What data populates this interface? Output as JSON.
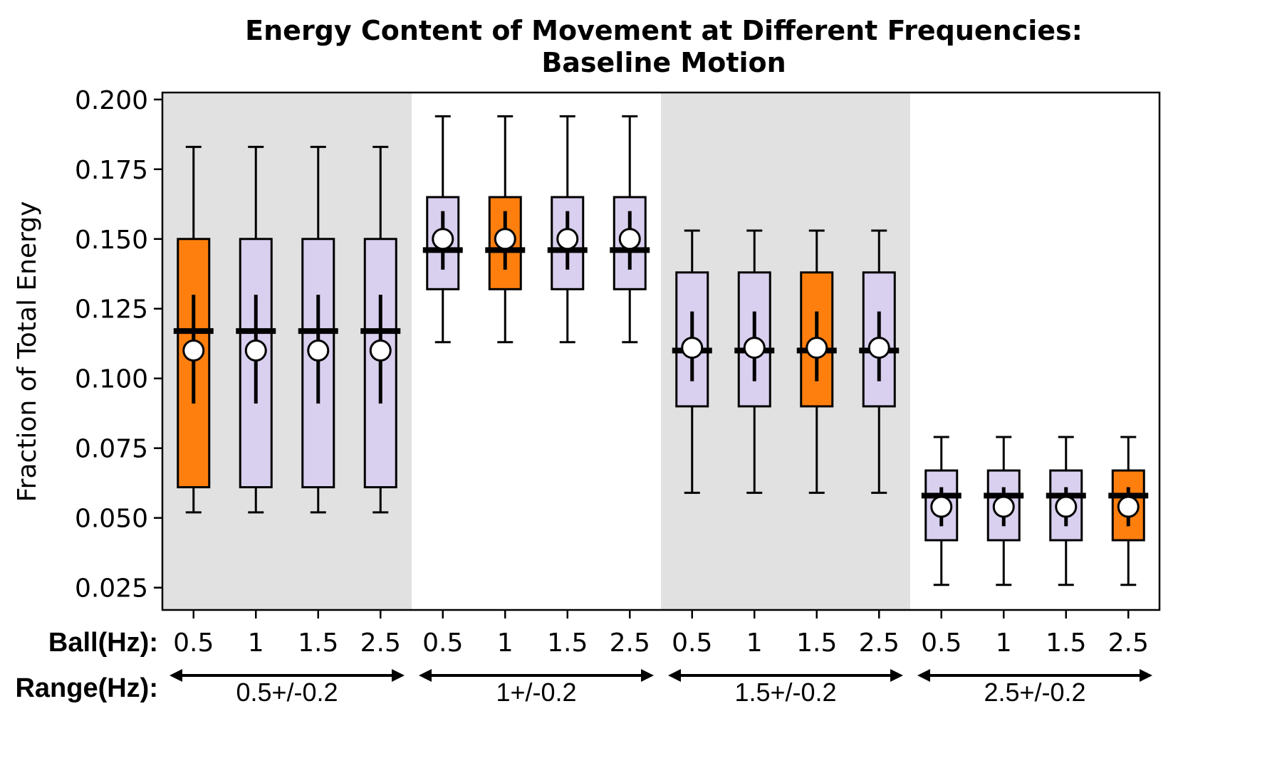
{
  "chart_data": {
    "type": "box",
    "title": "Energy Content of Movement at Different Frequencies:",
    "subtitle": "Baseline Motion",
    "ylabel": "Fraction of Total Energy",
    "ylim": [
      0.017,
      0.2025
    ],
    "yticks": [
      "0.025",
      "0.050",
      "0.075",
      "0.100",
      "0.125",
      "0.150",
      "0.175",
      "0.200"
    ],
    "row_labels": {
      "ball": "Ball(Hz):",
      "range": "Range(Hz):"
    },
    "ball_labels": [
      "0.5",
      "1",
      "1.5",
      "2.5",
      "0.5",
      "1",
      "1.5",
      "2.5",
      "0.5",
      "1",
      "1.5",
      "2.5",
      "0.5",
      "1",
      "1.5",
      "2.5"
    ],
    "colors": {
      "box": "#d9cfee",
      "highlight": "#ff7f0e",
      "shade": "#e1e1e1",
      "mean_fill": "#ffffff",
      "line": "#000000"
    },
    "groups": [
      {
        "range": "0.5+/-0.2",
        "shaded": true,
        "stats": {
          "whisker_low": 0.052,
          "q1": 0.061,
          "median": 0.117,
          "q3": 0.15,
          "whisker_high": 0.183,
          "mean": 0.11,
          "ci_low": 0.091,
          "ci_high": 0.13
        },
        "highlight_index": 0
      },
      {
        "range": "1+/-0.2",
        "shaded": false,
        "stats": {
          "whisker_low": 0.113,
          "q1": 0.132,
          "median": 0.146,
          "q3": 0.165,
          "whisker_high": 0.194,
          "mean": 0.15,
          "ci_low": 0.139,
          "ci_high": 0.16
        },
        "highlight_index": 1
      },
      {
        "range": "1.5+/-0.2",
        "shaded": true,
        "stats": {
          "whisker_low": 0.059,
          "q1": 0.09,
          "median": 0.11,
          "q3": 0.138,
          "whisker_high": 0.153,
          "mean": 0.111,
          "ci_low": 0.099,
          "ci_high": 0.124
        },
        "highlight_index": 2
      },
      {
        "range": "2.5+/-0.2",
        "shaded": false,
        "stats": {
          "whisker_low": 0.026,
          "q1": 0.042,
          "median": 0.058,
          "q3": 0.067,
          "whisker_high": 0.079,
          "mean": 0.054,
          "ci_low": 0.047,
          "ci_high": 0.061
        },
        "highlight_index": 3
      }
    ]
  }
}
